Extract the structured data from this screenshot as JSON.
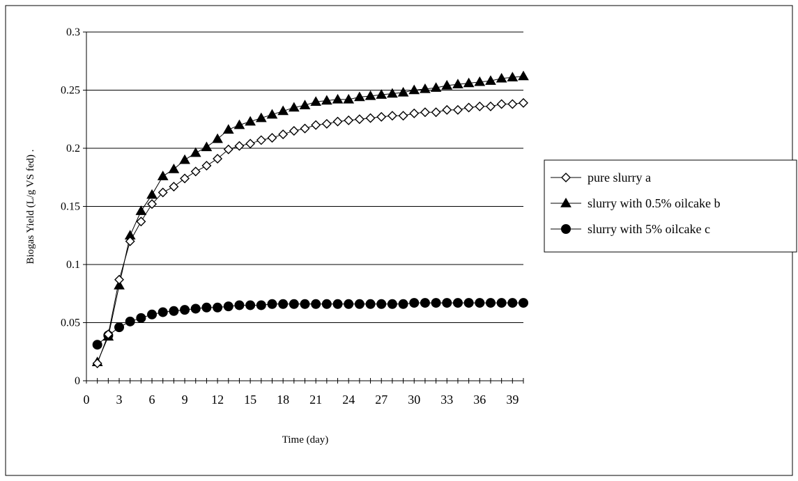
{
  "chart_data": {
    "type": "line",
    "xlabel": "Time (day)",
    "ylabel": "Biogas Yield (L/g VS fed) .",
    "xlim": [
      0,
      40
    ],
    "ylim": [
      0,
      0.3
    ],
    "x_ticks": [
      "0",
      "3",
      "6",
      "9",
      "12",
      "15",
      "18",
      "21",
      "24",
      "27",
      "30",
      "33",
      "36",
      "39"
    ],
    "y_ticks": [
      "0",
      "0.05",
      "0.1",
      "0.15",
      "0.2",
      "0.25",
      "0.3"
    ],
    "grid": "horizontal",
    "legend_position": "right",
    "x": [
      1,
      2,
      3,
      4,
      5,
      6,
      7,
      8,
      9,
      10,
      11,
      12,
      13,
      14,
      15,
      16,
      17,
      18,
      19,
      20,
      21,
      22,
      23,
      24,
      25,
      26,
      27,
      28,
      29,
      30,
      31,
      32,
      33,
      34,
      35,
      36,
      37,
      38,
      39,
      40
    ],
    "series": [
      {
        "name": "pure slurry a",
        "marker": "diamond-open",
        "values": [
          0.015,
          0.04,
          0.087,
          0.12,
          0.137,
          0.152,
          0.162,
          0.167,
          0.174,
          0.18,
          0.185,
          0.191,
          0.199,
          0.202,
          0.204,
          0.207,
          0.209,
          0.212,
          0.215,
          0.217,
          0.22,
          0.221,
          0.223,
          0.224,
          0.225,
          0.226,
          0.227,
          0.228,
          0.228,
          0.23,
          0.231,
          0.231,
          0.233,
          0.233,
          0.235,
          0.236,
          0.236,
          0.238,
          0.238,
          0.239
        ]
      },
      {
        "name": "slurry with 0.5% oilcake b",
        "marker": "triangle-filled",
        "values": [
          0.016,
          0.038,
          0.082,
          0.125,
          0.146,
          0.16,
          0.176,
          0.182,
          0.19,
          0.196,
          0.201,
          0.208,
          0.216,
          0.22,
          0.223,
          0.226,
          0.229,
          0.232,
          0.235,
          0.237,
          0.24,
          0.241,
          0.242,
          0.242,
          0.244,
          0.245,
          0.246,
          0.247,
          0.248,
          0.25,
          0.251,
          0.252,
          0.254,
          0.255,
          0.256,
          0.257,
          0.258,
          0.26,
          0.261,
          0.262
        ]
      },
      {
        "name": "slurry with 5% oilcake c",
        "marker": "circle-filled",
        "values": [
          0.031,
          0.039,
          0.046,
          0.051,
          0.054,
          0.057,
          0.059,
          0.06,
          0.061,
          0.062,
          0.063,
          0.063,
          0.064,
          0.065,
          0.065,
          0.065,
          0.066,
          0.066,
          0.066,
          0.066,
          0.066,
          0.066,
          0.066,
          0.066,
          0.066,
          0.066,
          0.066,
          0.066,
          0.066,
          0.067,
          0.067,
          0.067,
          0.067,
          0.067,
          0.067,
          0.067,
          0.067,
          0.067,
          0.067,
          0.067
        ]
      }
    ],
    "colors": {
      "line": "#000000",
      "grid": "#000000",
      "background": "#ffffff"
    }
  }
}
